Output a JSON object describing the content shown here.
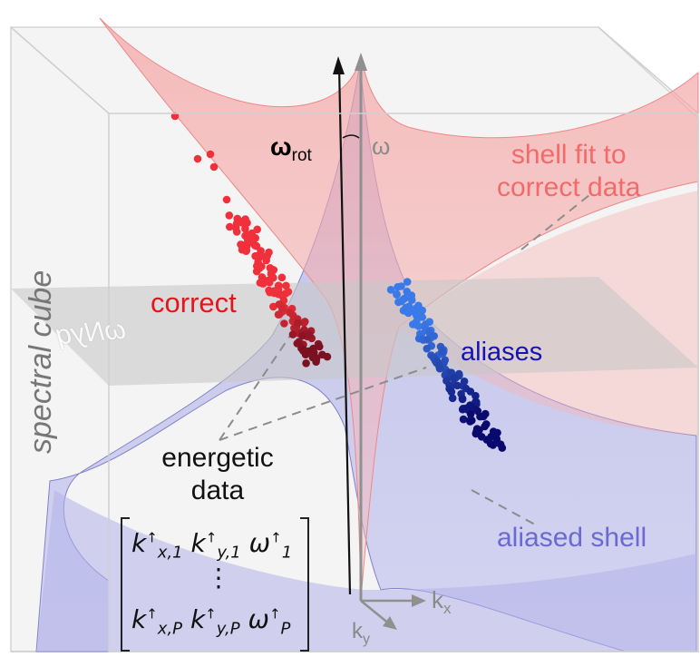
{
  "labels": {
    "shell_fit_line1": "shell fit to",
    "shell_fit_line2": "correct data",
    "correct": "correct",
    "aliases": "aliases",
    "aliased_shell": "aliased shell",
    "energetic_line1": "energetic",
    "energetic_line2": "data",
    "spectral_cube": "spectral cube",
    "omega_nyq": "ωNyq",
    "omega_rot_symbol": "ω",
    "omega_rot_sub": "rot",
    "omega": "ω",
    "kx": "kx",
    "ky": "ky"
  },
  "matrix": {
    "row1": {
      "k1": "k",
      "k1_sub": "x,1",
      "k2": "k",
      "k2_sub": "y,1",
      "w": "ω",
      "w_sub": "1",
      "arrow": "↑"
    },
    "row2": {
      "k1": "k",
      "k1_sub": "x,P",
      "k2": "k",
      "k2_sub": "y,P",
      "w": "ω",
      "w_sub": "P",
      "arrow": "↑"
    },
    "vdots": "⋮"
  },
  "colors": {
    "shell_fit": "#f26a6a",
    "aliased_shell": "#8a8ad8",
    "correct_points_upper": "#f0303a",
    "correct_points_lower": "#7a1020",
    "alias_points_upper": "#3a7ae8",
    "alias_points_lower": "#0a0a6e",
    "nyquist_plane": "#c8c8c8"
  }
}
